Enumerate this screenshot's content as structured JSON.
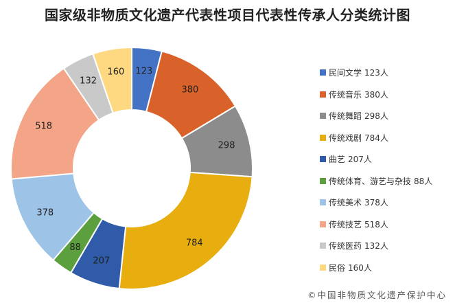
{
  "chart_data": {
    "type": "pie",
    "donut": true,
    "title": "国家级非物质文化遗产代表性项目代表性传承人分类统计图",
    "categories": [
      "民间文学",
      "传统音乐",
      "传统舞蹈",
      "传统戏剧",
      "曲艺",
      "传统体育、游艺与杂技",
      "传统美术",
      "传统技艺",
      "传统医药",
      "民俗"
    ],
    "values": [
      123,
      380,
      298,
      784,
      207,
      88,
      378,
      518,
      132,
      160
    ],
    "unit": "人",
    "colors": [
      "#4472C4",
      "#D9622B",
      "#8C8C8C",
      "#E8AE10",
      "#2F5BA8",
      "#5B9F3E",
      "#9DC3E6",
      "#F4A587",
      "#C9C9C9",
      "#FFD981"
    ],
    "legend_position": "right"
  },
  "legend_items": [
    {
      "label": "民间文学",
      "value": "123人"
    },
    {
      "label": "传统音乐",
      "value": "380人"
    },
    {
      "label": "传统舞蹈",
      "value": "298人"
    },
    {
      "label": "传统戏剧",
      "value": "784人"
    },
    {
      "label": "曲艺",
      "value": "207人"
    },
    {
      "label": "传统体育、游艺与杂技",
      "value": "88人"
    },
    {
      "label": "传统美术",
      "value": "378人"
    },
    {
      "label": "传统技艺",
      "value": "518人"
    },
    {
      "label": "传统医药",
      "value": "132人"
    },
    {
      "label": "民俗",
      "value": "160人"
    }
  ],
  "copyright": "©中国非物质文化遗产保护中心"
}
